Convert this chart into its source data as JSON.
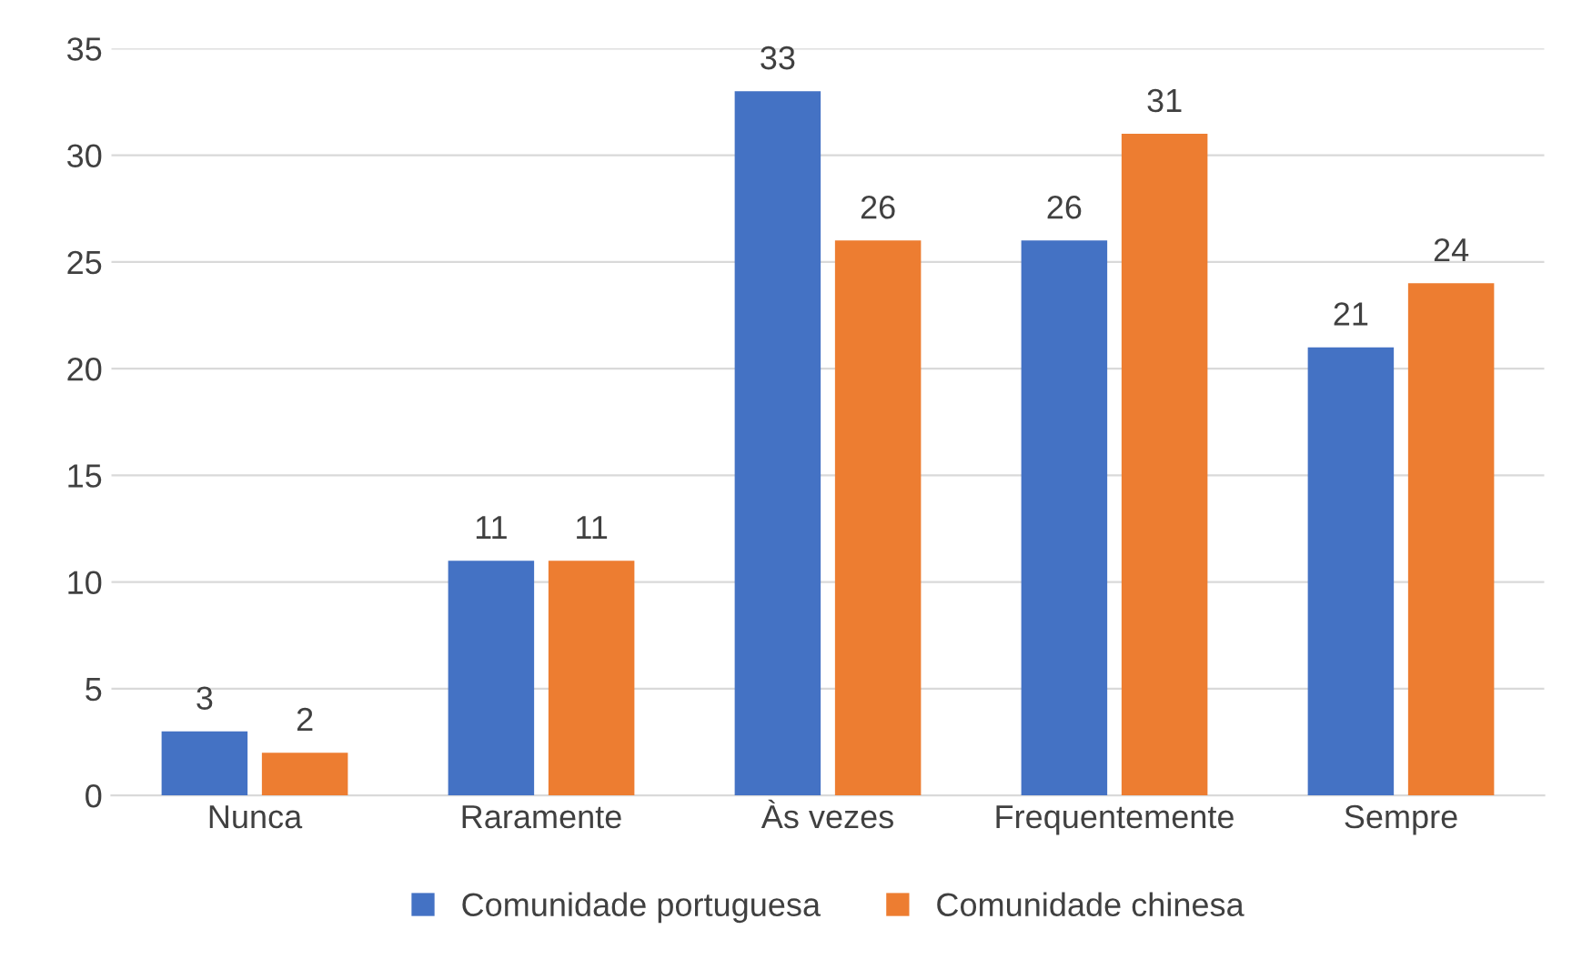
{
  "chart_data": {
    "type": "bar",
    "categories": [
      "Nunca",
      "Raramente",
      "Às vezes",
      "Frequentemente",
      "Sempre"
    ],
    "series": [
      {
        "name": "Comunidade portuguesa",
        "color": "#4472c4",
        "values": [
          3,
          11,
          33,
          26,
          21
        ]
      },
      {
        "name": "Comunidade chinesa",
        "color": "#ed7d31",
        "values": [
          2,
          11,
          26,
          31,
          24
        ]
      }
    ],
    "ylim": [
      0,
      35
    ],
    "yticks": [
      0,
      5,
      10,
      15,
      20,
      25,
      30,
      35
    ],
    "grid": "y",
    "legend": "bottom",
    "data_labels": true
  }
}
